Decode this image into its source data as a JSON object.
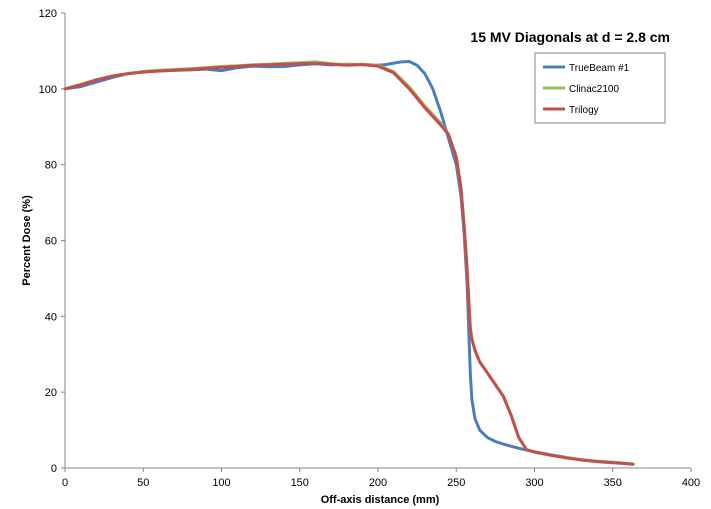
{
  "chart_data": {
    "type": "line",
    "title": "15 MV Diagonals at d = 2.8 cm",
    "xlabel": "Off-axis distance (mm)",
    "ylabel": "Percent Dose (%)",
    "xlim": [
      0,
      400
    ],
    "ylim": [
      0,
      120
    ],
    "xticks": [
      0,
      50,
      100,
      150,
      200,
      250,
      300,
      350,
      400
    ],
    "yticks": [
      0,
      20,
      40,
      60,
      80,
      100,
      120
    ],
    "grid": false,
    "legend_position": "top-right",
    "series": [
      {
        "name": "TrueBeam #1",
        "color": "#4a7ebb",
        "x": [
          0,
          10,
          20,
          30,
          40,
          50,
          60,
          70,
          80,
          90,
          100,
          110,
          120,
          130,
          140,
          150,
          160,
          170,
          180,
          190,
          200,
          205,
          210,
          215,
          220,
          225,
          230,
          235,
          240,
          245,
          250,
          253,
          255,
          257,
          258,
          259,
          260,
          262,
          265,
          270,
          275,
          280,
          290,
          300,
          310,
          320,
          330,
          340,
          350,
          360,
          363
        ],
        "y": [
          100,
          100.6,
          101.8,
          103,
          104,
          104.5,
          104.7,
          104.9,
          105,
          105.2,
          104.8,
          105.6,
          106,
          105.8,
          105.9,
          106.3,
          106.6,
          106.3,
          106.5,
          106.4,
          106.2,
          106.4,
          106.8,
          107.1,
          107.2,
          106.2,
          104,
          100,
          94,
          87,
          80,
          72,
          62,
          48,
          36,
          25,
          18,
          13,
          10,
          8,
          7,
          6.3,
          5.2,
          4.3,
          3.5,
          2.8,
          2.2,
          1.8,
          1.5,
          1.1,
          1
        ]
      },
      {
        "name": "Clinac2100",
        "color": "#9bbb59",
        "x": [
          0,
          10,
          20,
          30,
          40,
          50,
          60,
          70,
          80,
          90,
          100,
          110,
          120,
          130,
          140,
          150,
          160,
          170,
          180,
          190,
          200,
          210,
          220,
          230,
          240,
          245,
          250,
          253,
          255,
          257,
          258,
          259,
          260,
          262,
          265,
          270,
          275,
          280,
          285,
          290,
          295,
          300,
          310,
          320,
          330,
          340,
          350,
          360,
          363
        ],
        "y": [
          100,
          101.2,
          102.4,
          103.4,
          104,
          104.6,
          104.9,
          105.1,
          105.3,
          105.6,
          105.9,
          106.1,
          106.3,
          106.5,
          106.7,
          106.9,
          107.1,
          106.6,
          106.4,
          106.5,
          106.2,
          104.5,
          100.5,
          95.5,
          91,
          88,
          82,
          74,
          64,
          52,
          44,
          37,
          34,
          31,
          28,
          25,
          22,
          19,
          14,
          8,
          4.8,
          4.2,
          3.5,
          2.8,
          2.2,
          1.8,
          1.5,
          1.1,
          1
        ]
      },
      {
        "name": "Trilogy",
        "color": "#c0504d",
        "x": [
          0,
          10,
          20,
          30,
          40,
          50,
          60,
          70,
          80,
          90,
          100,
          110,
          120,
          130,
          140,
          150,
          160,
          170,
          180,
          190,
          200,
          210,
          220,
          230,
          240,
          245,
          250,
          253,
          255,
          257,
          258,
          259,
          260,
          262,
          265,
          270,
          275,
          280,
          285,
          290,
          295,
          300,
          310,
          320,
          330,
          340,
          350,
          360,
          363
        ],
        "y": [
          100,
          101,
          102.3,
          103.3,
          104,
          104.4,
          104.7,
          104.9,
          105.1,
          105.4,
          105.7,
          105.9,
          106.2,
          106.3,
          106.5,
          106.6,
          106.7,
          106.5,
          106.2,
          106.4,
          106,
          104.2,
          100,
          95,
          90.5,
          88,
          82,
          74,
          64,
          52,
          44,
          37,
          34,
          31,
          28,
          25,
          22,
          19,
          14,
          8,
          4.8,
          4.2,
          3.4,
          2.7,
          2.1,
          1.7,
          1.4,
          1.1,
          1
        ]
      }
    ]
  }
}
